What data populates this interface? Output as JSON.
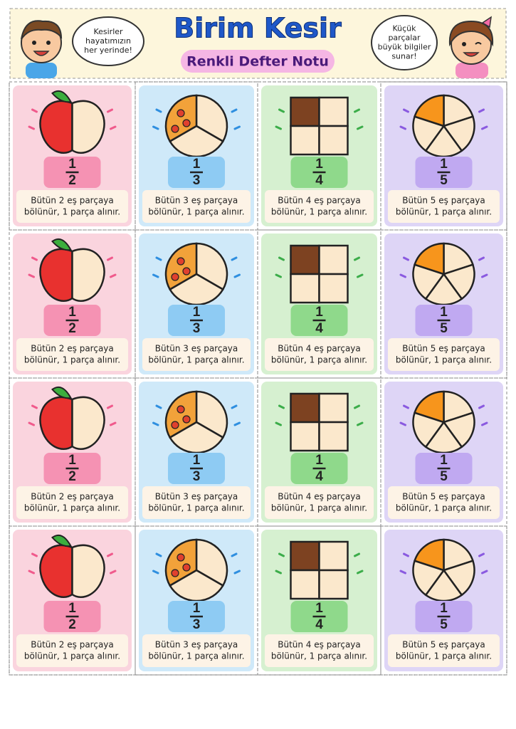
{
  "header": {
    "title": "Birim Kesir",
    "subtitle": "Renkli Defter Notu",
    "left_bubble": [
      "Kesirler",
      "hayatımızın",
      "her yerinde!"
    ],
    "right_bubble": [
      "Küçük",
      "parçalar",
      "büyük bilgiler",
      "sunar!"
    ]
  },
  "grid": {
    "rows": [
      {
        "cards": [
          {
            "numerator": 1,
            "denominator": 2,
            "lines": [
              "Bütün 2 eş parçaya",
              "bölünür, 1 parça alınır."
            ]
          },
          {
            "numerator": 1,
            "denominator": 3,
            "lines": [
              "Bütün 3 eş parçaya",
              "bölünür, 1 parça alınır."
            ]
          },
          {
            "numerator": 1,
            "denominator": 4,
            "lines": [
              "Bütün 4 eş parçaya",
              "bölünür, 1 parça alınır."
            ]
          },
          {
            "numerator": 1,
            "denominator": 5,
            "lines": [
              "Bütün 5 eş parçaya",
              "bölünür, 1 parça alınır."
            ]
          }
        ]
      },
      {
        "cards": [
          {
            "numerator": 1,
            "denominator": 2,
            "lines": [
              "Bütün 2 eş parçaya",
              "bölünür, 1 parça alınır."
            ]
          },
          {
            "numerator": 1,
            "denominator": 3,
            "lines": [
              "Bütün 3 eş parçaya",
              "bölünür, 1 parça alınır."
            ]
          },
          {
            "numerator": 1,
            "denominator": 4,
            "lines": [
              "Bütün 4 eş parçaya",
              "bölünür, 1 parça alınır."
            ]
          },
          {
            "numerator": 1,
            "denominator": 5,
            "lines": [
              "Bütün 5 eş parçaya",
              "bölünür, 1 parça alınır."
            ]
          }
        ]
      },
      {
        "cards": [
          {
            "numerator": 1,
            "denominator": 2,
            "lines": [
              "Bütün 2 eş parçaya",
              "bölünür, 1 parça alınır."
            ]
          },
          {
            "numerator": 1,
            "denominator": 3,
            "lines": [
              "Bütün 3 eş parçaya",
              "bölünür, 1 parça alınır."
            ]
          },
          {
            "numerator": 1,
            "denominator": 4,
            "lines": [
              "Bütün 4 eş parçaya",
              "bölünür, 1 parça alınır."
            ]
          },
          {
            "numerator": 1,
            "denominator": 5,
            "lines": [
              "Bütün 5 eş parçaya",
              "bölünür, 1 parça alınır."
            ]
          }
        ]
      },
      {
        "cards": [
          {
            "numerator": 1,
            "denominator": 2,
            "lines": [
              "Bütün 2 eş parçaya",
              "bölünür, 1 parça alınır."
            ]
          },
          {
            "numerator": 1,
            "denominator": 3,
            "lines": [
              "Bütün 3 eş parçaya",
              "bölünür, 1 parça alınır."
            ]
          },
          {
            "numerator": 1,
            "denominator": 4,
            "lines": [
              "Bütün 4 eş parçaya",
              "bölünür, 1 parça alınır."
            ]
          },
          {
            "numerator": 1,
            "denominator": 5,
            "lines": [
              "Bütün 5 eş parçaya",
              "bölünür, 1 parça alınır."
            ]
          }
        ]
      }
    ]
  }
}
